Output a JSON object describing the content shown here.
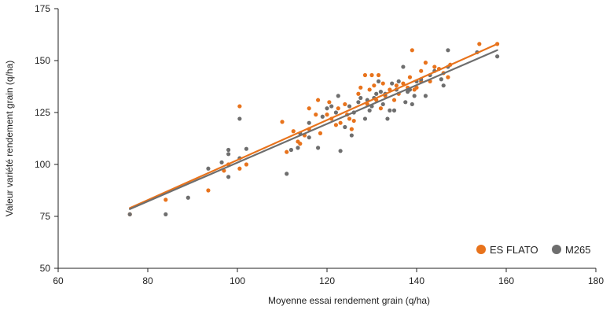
{
  "chart_data": {
    "type": "scatter",
    "title": "",
    "xlabel": "Moyenne essai rendement grain (q/ha)",
    "ylabel": "Valeur variété rendement grain (q/ha)",
    "xlim": [
      60,
      180
    ],
    "ylim": [
      50,
      175
    ],
    "xticks": [
      60,
      80,
      100,
      120,
      140,
      160,
      180
    ],
    "yticks": [
      50,
      75,
      100,
      125,
      150,
      175
    ],
    "grid": false,
    "legend_placement": "bottom-right",
    "series": [
      {
        "name": "ES FLATO",
        "color": "#E8731C",
        "trendline": {
          "x0": 76,
          "y0": 79,
          "x1": 158,
          "y1": 158
        },
        "points": [
          [
            76,
            76
          ],
          [
            84,
            83
          ],
          [
            93.5,
            87.5
          ],
          [
            97,
            97
          ],
          [
            98,
            100
          ],
          [
            100.5,
            98
          ],
          [
            100.5,
            128
          ],
          [
            102,
            100
          ],
          [
            110,
            120.5
          ],
          [
            111,
            106
          ],
          [
            112.5,
            116
          ],
          [
            113.5,
            111
          ],
          [
            114,
            110
          ],
          [
            115,
            114
          ],
          [
            116,
            117
          ],
          [
            116,
            127
          ],
          [
            117.5,
            124
          ],
          [
            118,
            131
          ],
          [
            118.5,
            115
          ],
          [
            120,
            124
          ],
          [
            120.5,
            130
          ],
          [
            121,
            122
          ],
          [
            122,
            119
          ],
          [
            122.5,
            127
          ],
          [
            123,
            120
          ],
          [
            124,
            129
          ],
          [
            124.5,
            124
          ],
          [
            125,
            122
          ],
          [
            125.5,
            117
          ],
          [
            126,
            121
          ],
          [
            127,
            134
          ],
          [
            127.5,
            137
          ],
          [
            128.5,
            143
          ],
          [
            129,
            129
          ],
          [
            129.5,
            136
          ],
          [
            130,
            143
          ],
          [
            130.5,
            138
          ],
          [
            131,
            131
          ],
          [
            131.5,
            143
          ],
          [
            132,
            127
          ],
          [
            132.5,
            139
          ],
          [
            133,
            133
          ],
          [
            134,
            136
          ],
          [
            135,
            131
          ],
          [
            135.5,
            138
          ],
          [
            136,
            134
          ],
          [
            137,
            139
          ],
          [
            138,
            137
          ],
          [
            138.5,
            142
          ],
          [
            139,
            155
          ],
          [
            139.5,
            136
          ],
          [
            140,
            137
          ],
          [
            141,
            140
          ],
          [
            141,
            145
          ],
          [
            142,
            149
          ],
          [
            143,
            140
          ],
          [
            144,
            147
          ],
          [
            145,
            146
          ],
          [
            146,
            144
          ],
          [
            147,
            142
          ],
          [
            147.5,
            148
          ],
          [
            154,
            158
          ],
          [
            158,
            158
          ]
        ]
      },
      {
        "name": "M265",
        "color": "#6E6E6E",
        "trendline": {
          "x0": 76,
          "y0": 78.5,
          "x1": 158,
          "y1": 155
        },
        "points": [
          [
            76,
            76
          ],
          [
            84,
            76
          ],
          [
            89,
            84
          ],
          [
            93.5,
            98
          ],
          [
            96.5,
            101
          ],
          [
            98,
            94
          ],
          [
            98,
            105
          ],
          [
            98,
            107
          ],
          [
            100.5,
            103
          ],
          [
            100.5,
            122
          ],
          [
            102,
            107.5
          ],
          [
            111,
            95.5
          ],
          [
            112,
            107
          ],
          [
            113.5,
            108
          ],
          [
            114,
            115
          ],
          [
            116,
            113
          ],
          [
            116,
            120
          ],
          [
            118,
            108
          ],
          [
            119,
            123
          ],
          [
            120,
            127
          ],
          [
            121,
            128
          ],
          [
            122,
            125
          ],
          [
            122.5,
            133
          ],
          [
            123,
            106.5
          ],
          [
            124,
            118
          ],
          [
            125,
            128
          ],
          [
            125.5,
            114
          ],
          [
            126,
            125
          ],
          [
            127,
            130
          ],
          [
            127.5,
            132
          ],
          [
            128.5,
            122
          ],
          [
            129,
            131
          ],
          [
            129.5,
            126
          ],
          [
            130,
            128
          ],
          [
            130.5,
            132
          ],
          [
            131,
            134
          ],
          [
            131.5,
            140
          ],
          [
            132,
            135
          ],
          [
            132.5,
            129
          ],
          [
            133,
            134
          ],
          [
            133.5,
            122
          ],
          [
            134,
            126
          ],
          [
            134.5,
            139
          ],
          [
            135,
            126
          ],
          [
            135.5,
            136
          ],
          [
            136,
            140
          ],
          [
            137,
            147
          ],
          [
            137.5,
            130
          ],
          [
            138,
            135
          ],
          [
            138.5,
            136
          ],
          [
            139,
            129
          ],
          [
            139.5,
            133
          ],
          [
            140,
            140
          ],
          [
            141,
            141
          ],
          [
            142,
            133
          ],
          [
            143,
            143
          ],
          [
            144,
            145
          ],
          [
            145.5,
            141
          ],
          [
            146,
            138
          ],
          [
            147,
            155
          ],
          [
            147,
            147
          ],
          [
            153.5,
            154
          ],
          [
            158,
            152
          ]
        ]
      }
    ]
  }
}
